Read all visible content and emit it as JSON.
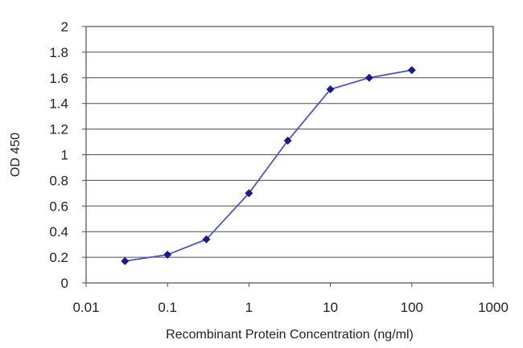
{
  "chart_data": {
    "type": "line",
    "x_scale": "log",
    "xlabel": "Recombinant Protein Concentration (ng/ml)",
    "ylabel": "OD 450",
    "xlim": [
      0.01,
      1000
    ],
    "ylim": [
      0,
      2
    ],
    "x_ticks": [
      0.01,
      0.1,
      1,
      10,
      100,
      1000
    ],
    "x_tick_labels": [
      "0.01",
      "0.1",
      "1",
      "10",
      "100",
      "1000"
    ],
    "y_ticks": [
      0,
      0.2,
      0.4,
      0.6,
      0.8,
      1,
      1.2,
      1.4,
      1.6,
      1.8,
      2
    ],
    "y_tick_labels": [
      "0",
      "0.2",
      "0.4",
      "0.6",
      "0.8",
      "1",
      "1.2",
      "1.4",
      "1.6",
      "1.8",
      "2"
    ],
    "grid": "horizontal",
    "series": [
      {
        "x": [
          0.03,
          0.1,
          0.3,
          1,
          3,
          10,
          30,
          100
        ],
        "y": [
          0.17,
          0.22,
          0.34,
          0.7,
          1.11,
          1.51,
          1.6,
          1.66
        ],
        "color": "#4b55c8",
        "marker_color": "#1a1a8c"
      }
    ]
  }
}
